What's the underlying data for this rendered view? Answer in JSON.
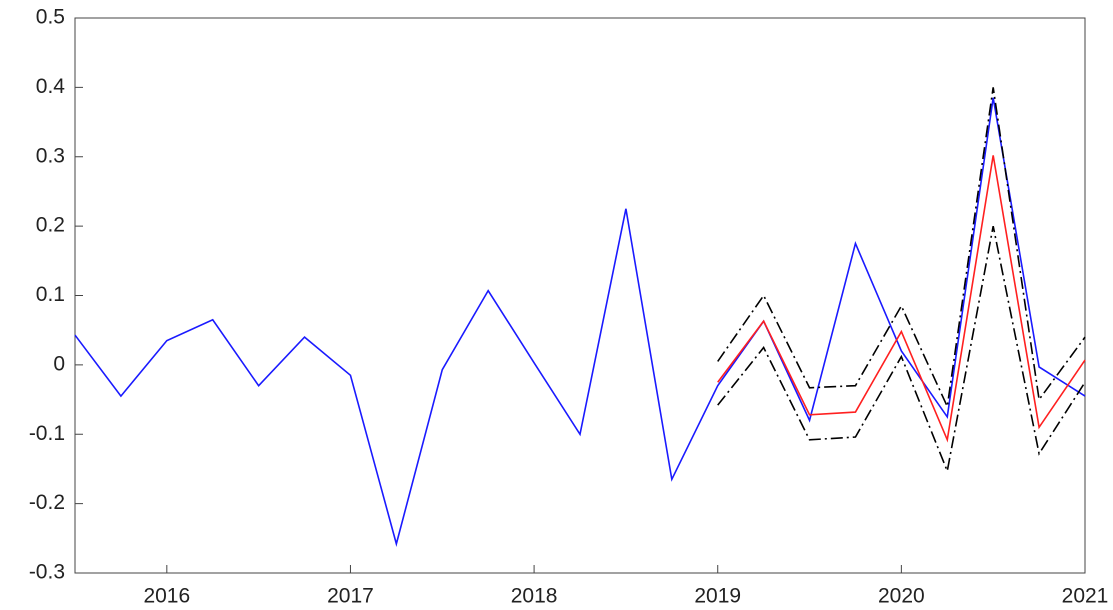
{
  "chart_data": {
    "type": "line",
    "x": [
      2015.5,
      2015.75,
      2016,
      2016.25,
      2016.5,
      2016.75,
      2017,
      2017.25,
      2017.5,
      2017.75,
      2018,
      2018.25,
      2018.5,
      2018.75,
      2019,
      2019.25,
      2019.5,
      2019.75,
      2020,
      2020.25,
      2020.5,
      2020.75,
      2021
    ],
    "series": [
      {
        "color": "#1a1aff",
        "dash": "none",
        "values": [
          0.043,
          -0.045,
          0.035,
          0.065,
          -0.03,
          0.04,
          -0.015,
          -0.258,
          -0.007,
          0.107,
          0.003,
          -0.1,
          0.225,
          -0.165,
          -0.03,
          0.063,
          -0.08,
          0.175,
          0.02,
          -0.075,
          0.385,
          -0.003,
          -0.045
        ]
      },
      {
        "color": "#ff2020",
        "dash": "none",
        "values": [
          null,
          null,
          null,
          null,
          null,
          null,
          null,
          null,
          null,
          null,
          null,
          null,
          null,
          null,
          -0.025,
          0.063,
          -0.072,
          -0.068,
          0.048,
          -0.108,
          0.302,
          -0.09,
          0.007
        ]
      },
      {
        "color": "#000000",
        "dash": "12 4 2 4",
        "values": [
          null,
          null,
          null,
          null,
          null,
          null,
          null,
          null,
          null,
          null,
          null,
          null,
          null,
          null,
          0.005,
          0.1,
          -0.033,
          -0.03,
          0.085,
          -0.06,
          0.4,
          -0.05,
          0.04
        ]
      },
      {
        "color": "#000000",
        "dash": "12 4 2 4",
        "values": [
          null,
          null,
          null,
          null,
          null,
          null,
          null,
          null,
          null,
          null,
          null,
          null,
          null,
          null,
          -0.058,
          0.025,
          -0.108,
          -0.104,
          0.012,
          -0.153,
          0.2,
          -0.128,
          -0.025
        ]
      }
    ],
    "xlim": [
      2015.5,
      2021
    ],
    "xticks": [
      2016,
      2017,
      2018,
      2019,
      2020,
      2021
    ],
    "ylim": [
      -0.3,
      0.5
    ],
    "yticks": [
      -0.3,
      -0.2,
      -0.1,
      0,
      0.1,
      0.2,
      0.3,
      0.4,
      0.5
    ],
    "grid": false
  }
}
